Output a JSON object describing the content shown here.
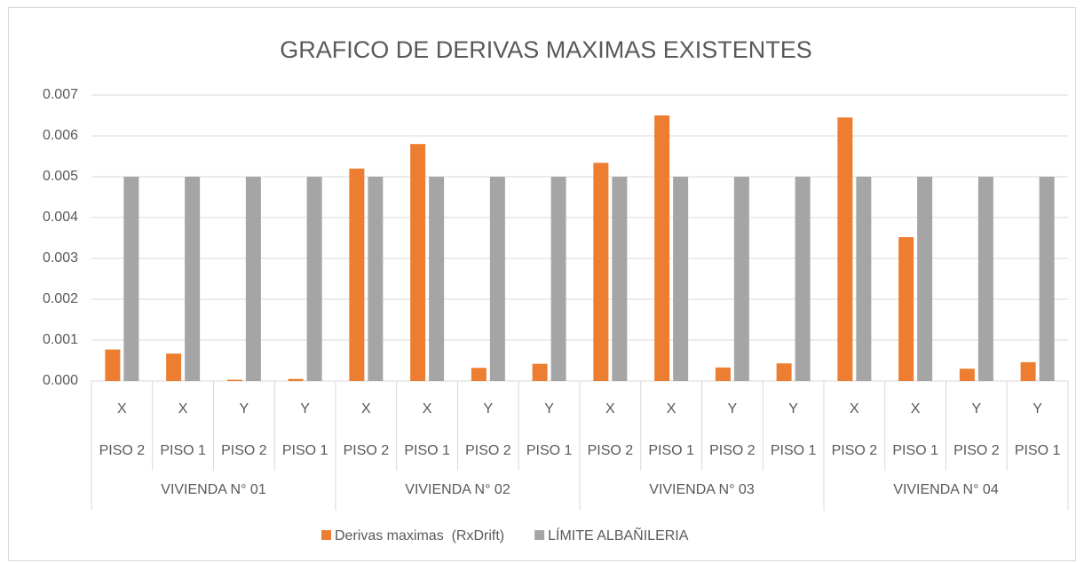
{
  "chart_data": {
    "type": "bar",
    "title": "GRAFICO DE DERIVAS MAXIMAS EXISTENTES",
    "categories": [
      "X",
      "X",
      "Y",
      "Y",
      "X",
      "X",
      "Y",
      "Y",
      "X",
      "X",
      "Y",
      "Y",
      "X",
      "X",
      "Y",
      "Y"
    ],
    "subcategories": [
      "PISO 2",
      "PISO 1",
      "PISO 2",
      "PISO 1",
      "PISO 2",
      "PISO 1",
      "PISO 2",
      "PISO 1",
      "PISO 2",
      "PISO 1",
      "PISO 2",
      "PISO 1",
      "PISO 2",
      "PISO 1",
      "PISO 2",
      "PISO 1"
    ],
    "groups": [
      "VIVIENDA N° 01",
      "VIVIENDA N° 02",
      "VIVIENDA N° 03",
      "VIVIENDA N° 04"
    ],
    "series": [
      {
        "name": "Derivas maximas  (RxDrift)",
        "color": "#ed7d31",
        "values": [
          0.00077,
          0.00067,
          3e-05,
          5e-05,
          0.0052,
          0.0058,
          0.00032,
          0.00042,
          0.00534,
          0.0065,
          0.00033,
          0.00043,
          0.00645,
          0.00352,
          0.0003,
          0.00046
        ]
      },
      {
        "name": "LÍMITE ALBAÑILERIA",
        "color": "#a5a5a5",
        "values": [
          0.005,
          0.005,
          0.005,
          0.005,
          0.005,
          0.005,
          0.005,
          0.005,
          0.005,
          0.005,
          0.005,
          0.005,
          0.005,
          0.005,
          0.005,
          0.005
        ]
      }
    ],
    "ylim": [
      0,
      0.007
    ],
    "yticks": [
      {
        "value": 0,
        "label": "0.000"
      },
      0.001,
      0.002,
      0.003,
      0.004,
      0.005,
      0.006,
      0.007
    ],
    "grid": true,
    "legend": "bottom"
  }
}
